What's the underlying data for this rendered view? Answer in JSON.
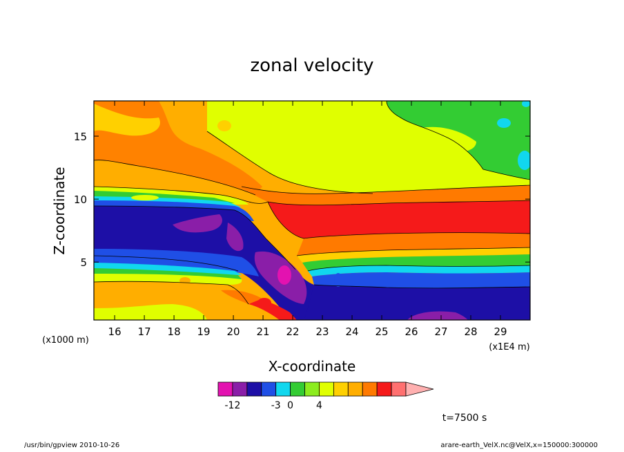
{
  "chart_data": {
    "type": "heatmap",
    "title": "zonal velocity",
    "xlabel": "X-coordinate",
    "ylabel": "Z-coordinate",
    "x_unit_left": "(x1000 m)",
    "x_unit_right": "(x1E4 m)",
    "xlim": [
      15.3,
      30.0
    ],
    "ylim": [
      0.4,
      17.8
    ],
    "x_ticks": [
      "16",
      "17",
      "18",
      "19",
      "20",
      "21",
      "22",
      "23",
      "24",
      "25",
      "26",
      "27",
      "28",
      "29"
    ],
    "y_ticks": [
      "5",
      "10",
      "15"
    ],
    "time_label": "t=7500 s",
    "colorbar": {
      "colors": [
        "#e312b0",
        "#8a1ea8",
        "#1d0fa6",
        "#1f4fe6",
        "#11d7ee",
        "#33cc33",
        "#8cec1e",
        "#e0ff00",
        "#ffd000",
        "#ffae00",
        "#ff7a00",
        "#f51a1a",
        "#ff7070",
        "#ffb0b0"
      ],
      "labels": [
        "-12",
        "-3",
        "0",
        "4"
      ],
      "label_bins": [
        1,
        4,
        5,
        7
      ]
    },
    "bands": [
      {
        "name": "surface-blue",
        "color": "#1d0fa6",
        "top": 3,
        "bottom": 0.4
      },
      {
        "name": "mid-blue",
        "color": "#1f4fe6",
        "top": 4.3,
        "bottom": 3
      },
      {
        "name": "cyan",
        "color": "#11d7ee",
        "top": 4.9,
        "bottom": 4.3
      },
      {
        "name": "green",
        "color": "#33cc33",
        "top": 5.4,
        "bottom": 4.9
      },
      {
        "name": "yellow-orange",
        "color": "#ffd000",
        "top": 6.0,
        "bottom": 5.4
      },
      {
        "name": "orange",
        "color": "#ff7a00",
        "top": 6.8,
        "bottom": 6.0
      },
      {
        "name": "jet-red",
        "color": "#f51a1a",
        "top": 9.4,
        "bottom": 6.8
      },
      {
        "name": "upper-orange",
        "color": "#ffae00",
        "top": 10.8,
        "bottom": 9.4
      },
      {
        "name": "upper-yellow",
        "color": "#e0ff00",
        "top": 17.8,
        "bottom": 10.8
      }
    ]
  },
  "footer": {
    "left": "/usr/bin/gpview   2010-10-26",
    "right": "arare-earth_VelX.nc@VelX,x=150000:300000"
  }
}
